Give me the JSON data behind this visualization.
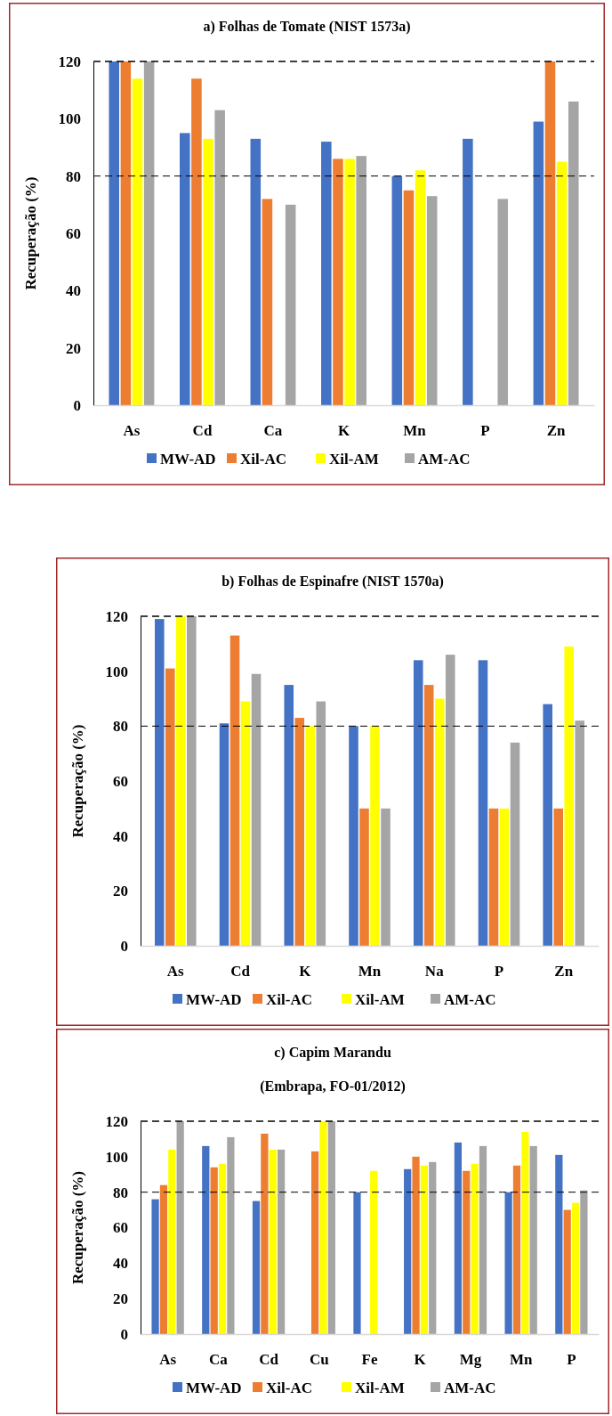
{
  "chart_data": [
    {
      "type": "bar",
      "title": "a) Folhas de Tomate (NIST 1573a)",
      "ylabel": "Recuperação (%)",
      "categories": [
        "As",
        "Cd",
        "Ca",
        "K",
        "Mn",
        "P",
        "Zn"
      ],
      "ylim": [
        0,
        120
      ],
      "yticks": [
        0,
        20,
        40,
        60,
        80,
        100,
        120
      ],
      "legend": "bottom",
      "grid": false,
      "ref_lines": [
        {
          "axis": "y",
          "value": 120,
          "line_style": "dashed",
          "color": "#000000"
        },
        {
          "axis": "y",
          "value": 80,
          "line_style": "dashed",
          "color": "#000000"
        }
      ],
      "series": [
        {
          "name": "MW-AD",
          "color": "#4472c4",
          "values": [
            120,
            95,
            93,
            92,
            80,
            93,
            99
          ]
        },
        {
          "name": "Xil-AC",
          "color": "#ed7d31",
          "values": [
            120,
            114,
            72,
            86,
            75,
            null,
            120
          ]
        },
        {
          "name": "Xil-AM",
          "color": "#ffff00",
          "values": [
            114,
            93,
            null,
            86,
            82,
            null,
            85
          ]
        },
        {
          "name": "AM-AC",
          "color": "#a5a5a5",
          "values": [
            120,
            103,
            70,
            87,
            73,
            72,
            106
          ]
        }
      ]
    },
    {
      "type": "bar",
      "title": "b) Folhas de Espinafre (NIST 1570a)",
      "ylabel": "Recuperação (%)",
      "categories": [
        "As",
        "Cd",
        "K",
        "Mn",
        "Na",
        "P",
        "Zn"
      ],
      "ylim": [
        0,
        120
      ],
      "yticks": [
        0,
        20,
        40,
        60,
        80,
        100,
        120
      ],
      "legend": "bottom",
      "grid": false,
      "ref_lines": [
        {
          "axis": "y",
          "value": 120,
          "line_style": "dashed",
          "color": "#000000"
        },
        {
          "axis": "y",
          "value": 80,
          "line_style": "dashed",
          "color": "#000000"
        }
      ],
      "series": [
        {
          "name": "MW-AD",
          "color": "#4472c4",
          "values": [
            119,
            81,
            95,
            80,
            104,
            104,
            88
          ]
        },
        {
          "name": "Xil-AC",
          "color": "#ed7d31",
          "values": [
            101,
            113,
            83,
            50,
            95,
            50,
            50
          ]
        },
        {
          "name": "Xil-AM",
          "color": "#ffff00",
          "values": [
            120,
            89,
            80,
            80,
            90,
            50,
            109
          ]
        },
        {
          "name": "AM-AC",
          "color": "#a5a5a5",
          "values": [
            120,
            99,
            89,
            50,
            106,
            74,
            82
          ]
        }
      ]
    },
    {
      "type": "bar",
      "title": "c) Capim Marandu",
      "subtitle": "(Embrapa, FO-01/2012)",
      "ylabel": "Recuperação (%)",
      "categories": [
        "As",
        "Ca",
        "Cd",
        "Cu",
        "Fe",
        "K",
        "Mg",
        "Mn",
        "P"
      ],
      "ylim": [
        0,
        120
      ],
      "yticks": [
        0,
        20,
        40,
        60,
        80,
        100,
        120
      ],
      "legend": "bottom",
      "grid": false,
      "ref_lines": [
        {
          "axis": "y",
          "value": 120,
          "line_style": "dashed",
          "color": "#000000"
        },
        {
          "axis": "y",
          "value": 80,
          "line_style": "dashed",
          "color": "#000000"
        }
      ],
      "series": [
        {
          "name": "MW-AD",
          "color": "#4472c4",
          "values": [
            76,
            106,
            75,
            null,
            80,
            93,
            108,
            80,
            101
          ]
        },
        {
          "name": "Xil-AC",
          "color": "#ed7d31",
          "values": [
            84,
            94,
            113,
            103,
            null,
            100,
            92,
            95,
            70
          ]
        },
        {
          "name": "Xil-AM",
          "color": "#ffff00",
          "values": [
            104,
            96,
            104,
            120,
            92,
            95,
            96,
            114,
            74
          ]
        },
        {
          "name": "AM-AC",
          "color": "#a5a5a5",
          "values": [
            120,
            111,
            104,
            120,
            null,
            97,
            106,
            106,
            81
          ]
        }
      ]
    }
  ]
}
